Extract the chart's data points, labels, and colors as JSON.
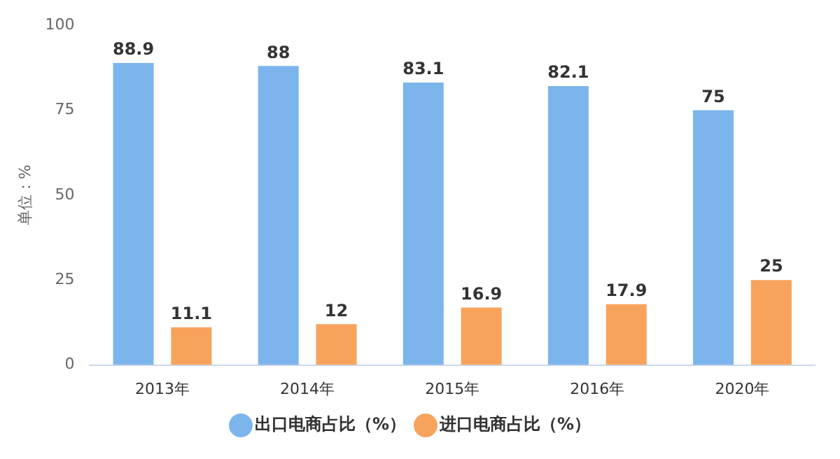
{
  "chart_data": {
    "type": "bar",
    "ylabel": "单位：%",
    "categories": [
      "2013年",
      "2014年",
      "2015年",
      "2016年",
      "2020年"
    ],
    "series": [
      {
        "name": "出口电商占比（%）",
        "color": "#7cb5ec",
        "values": [
          88.9,
          88,
          83.1,
          82.1,
          75
        ]
      },
      {
        "name": "进口电商占比（%）",
        "color": "#f7a35c",
        "values": [
          11.1,
          12,
          16.9,
          17.9,
          25
        ]
      }
    ],
    "ylim": [
      0,
      100
    ],
    "yticks": [
      0,
      25,
      50,
      75,
      100
    ],
    "data_labels": true,
    "legend": "bottom"
  }
}
